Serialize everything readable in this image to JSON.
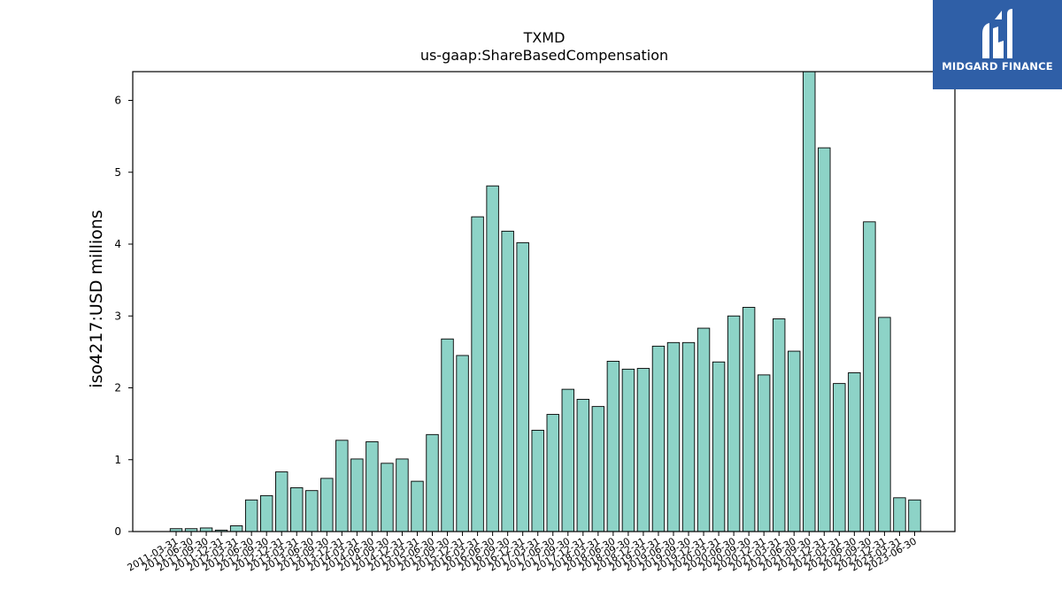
{
  "brand": {
    "name": "MIDGARD FINANCE",
    "bg_color": "#2f5fa7",
    "icon": "midgard-logo-icon"
  },
  "chart_data": {
    "type": "bar",
    "title": "TXMD",
    "subtitle": "us-gaap:ShareBasedCompensation",
    "ylabel": "iso4217:USD  millions",
    "xlabel": "",
    "ylim": [
      0,
      6.4
    ],
    "yticks": [
      0,
      1,
      2,
      3,
      4,
      5,
      6
    ],
    "grid": false,
    "bar_color": "#8dd3c7",
    "bar_edge_color": "#000000",
    "categories": [
      "2011-03-31",
      "2011-06-30",
      "2011-09-30",
      "2011-12-31",
      "2012-03-31",
      "2012-06-30",
      "2012-09-30",
      "2012-12-31",
      "2013-03-31",
      "2013-06-30",
      "2013-09-30",
      "2013-12-31",
      "2014-03-31",
      "2014-06-30",
      "2014-09-30",
      "2014-12-31",
      "2015-03-31",
      "2015-06-30",
      "2015-09-30",
      "2015-12-31",
      "2016-03-31",
      "2016-06-30",
      "2016-09-30",
      "2016-12-31",
      "2017-03-31",
      "2017-06-30",
      "2017-09-30",
      "2017-12-31",
      "2018-03-31",
      "2018-06-30",
      "2018-09-30",
      "2018-12-31",
      "2019-03-31",
      "2019-06-30",
      "2019-09-30",
      "2019-12-31",
      "2020-03-31",
      "2020-06-30",
      "2020-09-30",
      "2020-12-31",
      "2021-03-31",
      "2021-06-30",
      "2021-09-30",
      "2021-12-31",
      "2022-03-31",
      "2022-06-30",
      "2022-09-30",
      "2022-12-31",
      "2023-03-31",
      "2023-06-30"
    ],
    "values": [
      0.04,
      0.04,
      0.05,
      0.02,
      0.08,
      0.44,
      0.5,
      0.83,
      0.61,
      0.57,
      0.74,
      1.27,
      1.01,
      1.25,
      0.95,
      1.01,
      0.7,
      1.35,
      2.68,
      2.45,
      4.38,
      4.81,
      4.18,
      4.02,
      1.41,
      1.63,
      1.98,
      1.84,
      1.74,
      2.37,
      2.26,
      2.27,
      2.58,
      2.63,
      2.63,
      2.83,
      2.36,
      3.0,
      3.12,
      2.18,
      2.96,
      2.51,
      6.41,
      5.34,
      2.06,
      2.21,
      4.31,
      2.98,
      0.47,
      0.44
    ]
  }
}
